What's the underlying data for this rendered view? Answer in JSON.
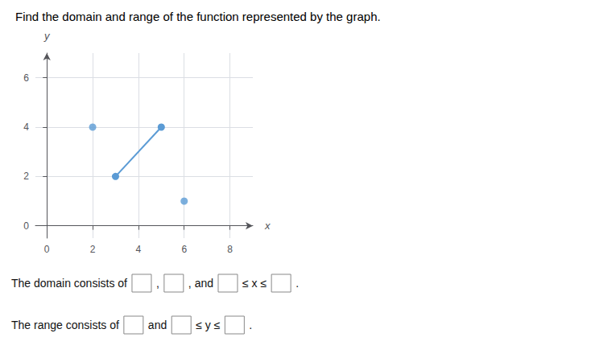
{
  "chart_data": {
    "type": "line",
    "title": "Find the domain and range of the function represented by the graph.",
    "xlabel": "x",
    "ylabel": "y",
    "xlim": [
      -0.5,
      9
    ],
    "ylim": [
      -0.5,
      7
    ],
    "xticks": [
      0,
      2,
      4,
      6,
      8
    ],
    "yticks": [
      0,
      2,
      4,
      6
    ],
    "grid": true,
    "series": [
      {
        "type": "line",
        "x": [
          3,
          5
        ],
        "values": [
          2,
          4
        ],
        "color": "#5b9bd5",
        "marker": "circle"
      },
      {
        "type": "scatter",
        "x": [
          2,
          6
        ],
        "values": [
          4,
          1
        ],
        "color": "#5b9bd5",
        "marker": "circle"
      }
    ],
    "annotations": [
      [
        "The domain consists of",
        ",",
        ", and",
        "≤ x ≤",
        "."
      ],
      [
        "The range consists of",
        "and",
        "≤ y ≤",
        "."
      ]
    ]
  }
}
